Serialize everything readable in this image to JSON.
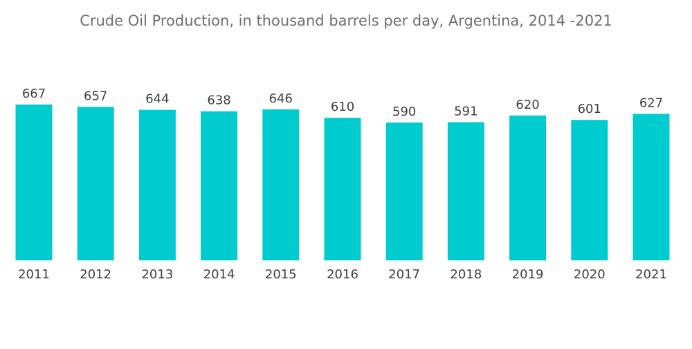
{
  "chart_data": {
    "type": "bar",
    "title": "Crude Oil Production, in thousand barrels per day, Argentina, 2014 -2021",
    "categories": [
      "2011",
      "2012",
      "2013",
      "2014",
      "2015",
      "2016",
      "2017",
      "2018",
      "2019",
      "2020",
      "2021"
    ],
    "values": [
      667,
      657,
      644,
      638,
      646,
      610,
      590,
      591,
      620,
      601,
      627
    ],
    "data_labels": [
      "667",
      "657",
      "644",
      "638",
      "646",
      "610",
      "590",
      "591",
      "620",
      "601",
      "627"
    ],
    "bar_color": "#00ccd0",
    "grid": false,
    "legend": "none"
  }
}
